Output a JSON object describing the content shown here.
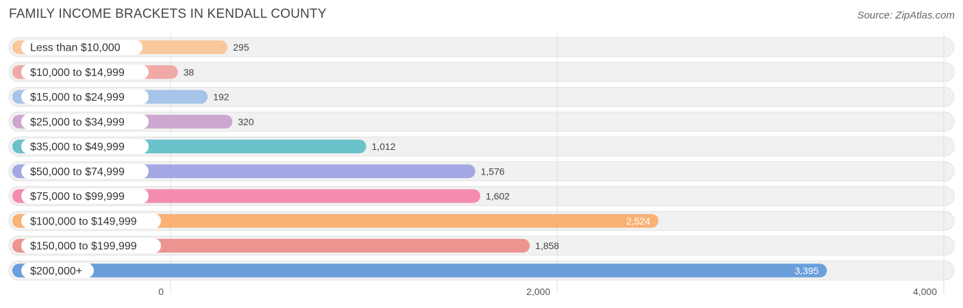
{
  "title": "FAMILY INCOME BRACKETS IN KENDALL COUNTY",
  "source": "Source: ZipAtlas.com",
  "chart_data": {
    "type": "bar",
    "orientation": "horizontal",
    "title": "FAMILY INCOME BRACKETS IN KENDALL COUNTY",
    "categories": [
      "Less than $10,000",
      "$10,000 to $14,999",
      "$15,000 to $24,999",
      "$25,000 to $34,999",
      "$35,000 to $49,999",
      "$50,000 to $74,999",
      "$75,000 to $99,999",
      "$100,000 to $149,999",
      "$150,000 to $199,999",
      "$200,000+"
    ],
    "values": [
      295,
      38,
      192,
      320,
      1012,
      1576,
      1602,
      2524,
      1858,
      3395
    ],
    "value_labels": [
      "295",
      "38",
      "192",
      "320",
      "1,012",
      "1,576",
      "1,602",
      "2,524",
      "1,858",
      "3,395"
    ],
    "colors": [
      "#f9c89b",
      "#f1a9a8",
      "#a6c4e8",
      "#cca7cf",
      "#6cc2ca",
      "#a3a8e4",
      "#f48cae",
      "#f9b176",
      "#ec9490",
      "#6a9fdc"
    ],
    "xlim": [
      0,
      4000
    ],
    "ticks": [
      0,
      2000,
      4000
    ],
    "tick_labels": [
      "0",
      "2,000",
      "4,000"
    ],
    "grid": true,
    "xlabel": "",
    "ylabel": ""
  }
}
